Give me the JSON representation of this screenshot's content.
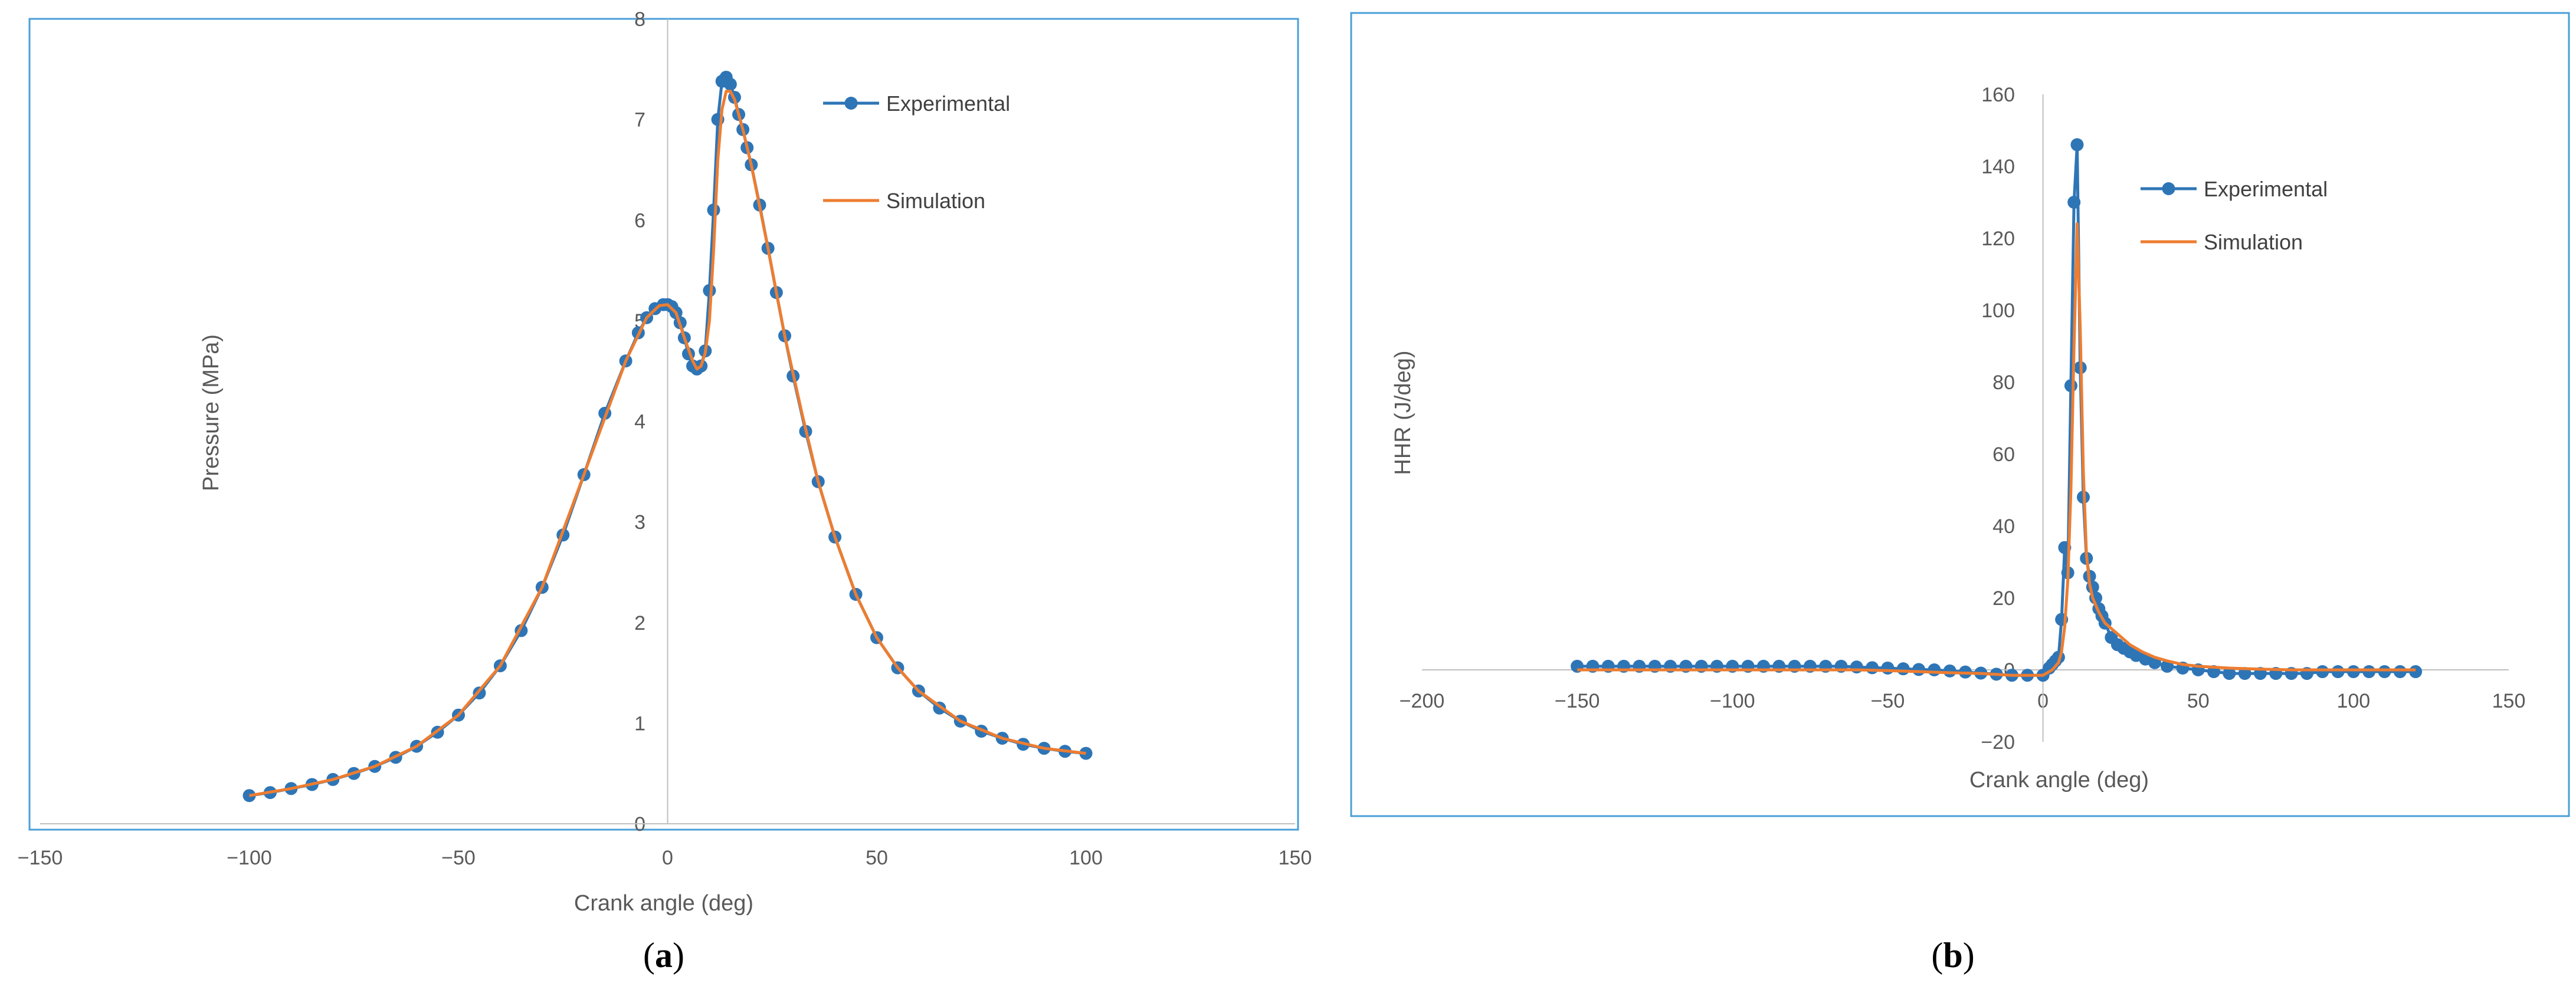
{
  "colors": {
    "experimental": "#2E75B6",
    "simulation": "#ED7D31",
    "frame": "#4A9FD8",
    "axis": "#BFBFBF",
    "text": "#595959"
  },
  "chart_data": [
    {
      "id": "a",
      "caption_letter": "a",
      "type": "line",
      "xlabel": "Crank angle (deg)",
      "ylabel": "Pressure (MPa)",
      "xlim": [
        -150,
        150
      ],
      "ylim": [
        0,
        8
      ],
      "xticks": [
        -150,
        -100,
        -50,
        0,
        50,
        100,
        150
      ],
      "yticks": [
        0,
        1,
        2,
        3,
        4,
        5,
        6,
        7,
        8
      ],
      "grid": false,
      "legend": "top-right",
      "series": [
        {
          "name": "Experimental",
          "style": "line-markers",
          "x": [
            -100,
            -95,
            -90,
            -85,
            -80,
            -75,
            -70,
            -65,
            -60,
            -55,
            -50,
            -45,
            -40,
            -35,
            -30,
            -25,
            -20,
            -15,
            -10,
            -7,
            -5,
            -3,
            -1,
            0,
            1,
            2,
            3,
            4,
            5,
            6,
            7,
            8,
            9,
            10,
            11,
            12,
            13,
            14,
            15,
            16,
            17,
            18,
            19,
            20,
            22,
            24,
            26,
            28,
            30,
            33,
            36,
            40,
            45,
            50,
            55,
            60,
            65,
            70,
            75,
            80,
            85,
            90,
            95,
            100
          ],
          "y": [
            0.28,
            0.31,
            0.35,
            0.39,
            0.44,
            0.5,
            0.57,
            0.66,
            0.77,
            0.91,
            1.08,
            1.3,
            1.57,
            1.92,
            2.35,
            2.87,
            3.47,
            4.08,
            4.6,
            4.88,
            5.03,
            5.12,
            5.16,
            5.16,
            5.14,
            5.08,
            4.98,
            4.83,
            4.67,
            4.55,
            4.52,
            4.55,
            4.7,
            5.3,
            6.1,
            7.0,
            7.38,
            7.42,
            7.35,
            7.22,
            7.05,
            6.9,
            6.72,
            6.55,
            6.15,
            5.72,
            5.28,
            4.85,
            4.45,
            3.9,
            3.4,
            2.85,
            2.28,
            1.85,
            1.55,
            1.32,
            1.15,
            1.02,
            0.92,
            0.85,
            0.79,
            0.75,
            0.72,
            0.7
          ]
        },
        {
          "name": "Simulation",
          "style": "line",
          "x": [
            -100,
            -90,
            -80,
            -70,
            -60,
            -50,
            -40,
            -30,
            -20,
            -10,
            -5,
            -2,
            0,
            2,
            4,
            6,
            7,
            8,
            9,
            10,
            11,
            12,
            13,
            14,
            15,
            16,
            18,
            20,
            24,
            28,
            32,
            36,
            40,
            45,
            50,
            55,
            60,
            70,
            80,
            90,
            100
          ],
          "y": [
            0.28,
            0.35,
            0.44,
            0.57,
            0.77,
            1.08,
            1.57,
            2.35,
            3.47,
            4.6,
            5.03,
            5.15,
            5.16,
            5.08,
            4.83,
            4.6,
            4.52,
            4.55,
            4.68,
            5.0,
            5.7,
            6.6,
            7.1,
            7.28,
            7.28,
            7.2,
            6.9,
            6.55,
            5.72,
            4.85,
            4.1,
            3.4,
            2.85,
            2.28,
            1.85,
            1.55,
            1.32,
            1.02,
            0.85,
            0.75,
            0.7
          ]
        }
      ]
    },
    {
      "id": "b",
      "caption_letter": "b",
      "type": "line",
      "xlabel": "Crank angle (deg)",
      "ylabel": "HHR (J/deg)",
      "xlim": [
        -200,
        150
      ],
      "ylim": [
        -20,
        160
      ],
      "xticks": [
        -200,
        -150,
        -100,
        -50,
        0,
        50,
        100,
        150
      ],
      "yticks": [
        -20,
        0,
        20,
        40,
        60,
        80,
        100,
        120,
        140,
        160
      ],
      "grid": false,
      "legend": "top-right",
      "series": [
        {
          "name": "Experimental",
          "style": "line-markers",
          "x": [
            -150,
            -145,
            -140,
            -135,
            -130,
            -125,
            -120,
            -115,
            -110,
            -105,
            -100,
            -95,
            -90,
            -85,
            -80,
            -75,
            -70,
            -65,
            -60,
            -55,
            -50,
            -45,
            -40,
            -35,
            -30,
            -25,
            -20,
            -15,
            -10,
            -5,
            0,
            2,
            3,
            4,
            5,
            6,
            7,
            8,
            9,
            10,
            11,
            12,
            13,
            14,
            15,
            16,
            17,
            18,
            19,
            20,
            22,
            24,
            26,
            28,
            30,
            33,
            36,
            40,
            45,
            50,
            55,
            60,
            65,
            70,
            75,
            80,
            85,
            90,
            95,
            100,
            105,
            110,
            115,
            120
          ],
          "y": [
            1,
            1,
            1,
            1,
            1,
            1,
            1,
            1,
            1,
            1,
            1,
            1,
            1,
            1,
            1,
            1,
            1,
            1,
            0.8,
            0.6,
            0.5,
            0.3,
            0.1,
            0,
            -0.3,
            -0.6,
            -0.9,
            -1.2,
            -1.5,
            -1.5,
            -1.5,
            0.5,
            1.5,
            2.5,
            3.5,
            14,
            34,
            27,
            79,
            130,
            146,
            84,
            48,
            31,
            26,
            23,
            20,
            17,
            15,
            13,
            9,
            7,
            6,
            5,
            4,
            3,
            2,
            1,
            0.5,
            0,
            -0.5,
            -1,
            -1,
            -1,
            -1,
            -1,
            -1,
            -0.5,
            -0.5,
            -0.5,
            -0.5,
            -0.5,
            -0.5,
            -0.5
          ]
        },
        {
          "name": "Simulation",
          "style": "line",
          "x": [
            -150,
            -100,
            -60,
            -50,
            -40,
            -30,
            -20,
            -10,
            0,
            3,
            5,
            6,
            7,
            8,
            9,
            10,
            11,
            12,
            13,
            14,
            15,
            16,
            18,
            20,
            24,
            28,
            32,
            36,
            40,
            45,
            50,
            60,
            70,
            80,
            100,
            120
          ],
          "y": [
            0,
            0,
            0,
            -0.2,
            -0.5,
            -0.8,
            -1,
            -1.5,
            -1.5,
            0,
            2,
            5,
            12,
            25,
            50,
            90,
            124,
            95,
            55,
            32,
            24,
            20,
            16,
            13,
            10,
            7,
            5,
            3.5,
            2.5,
            1.5,
            1,
            0.5,
            0.2,
            0,
            0,
            0
          ]
        }
      ]
    }
  ]
}
